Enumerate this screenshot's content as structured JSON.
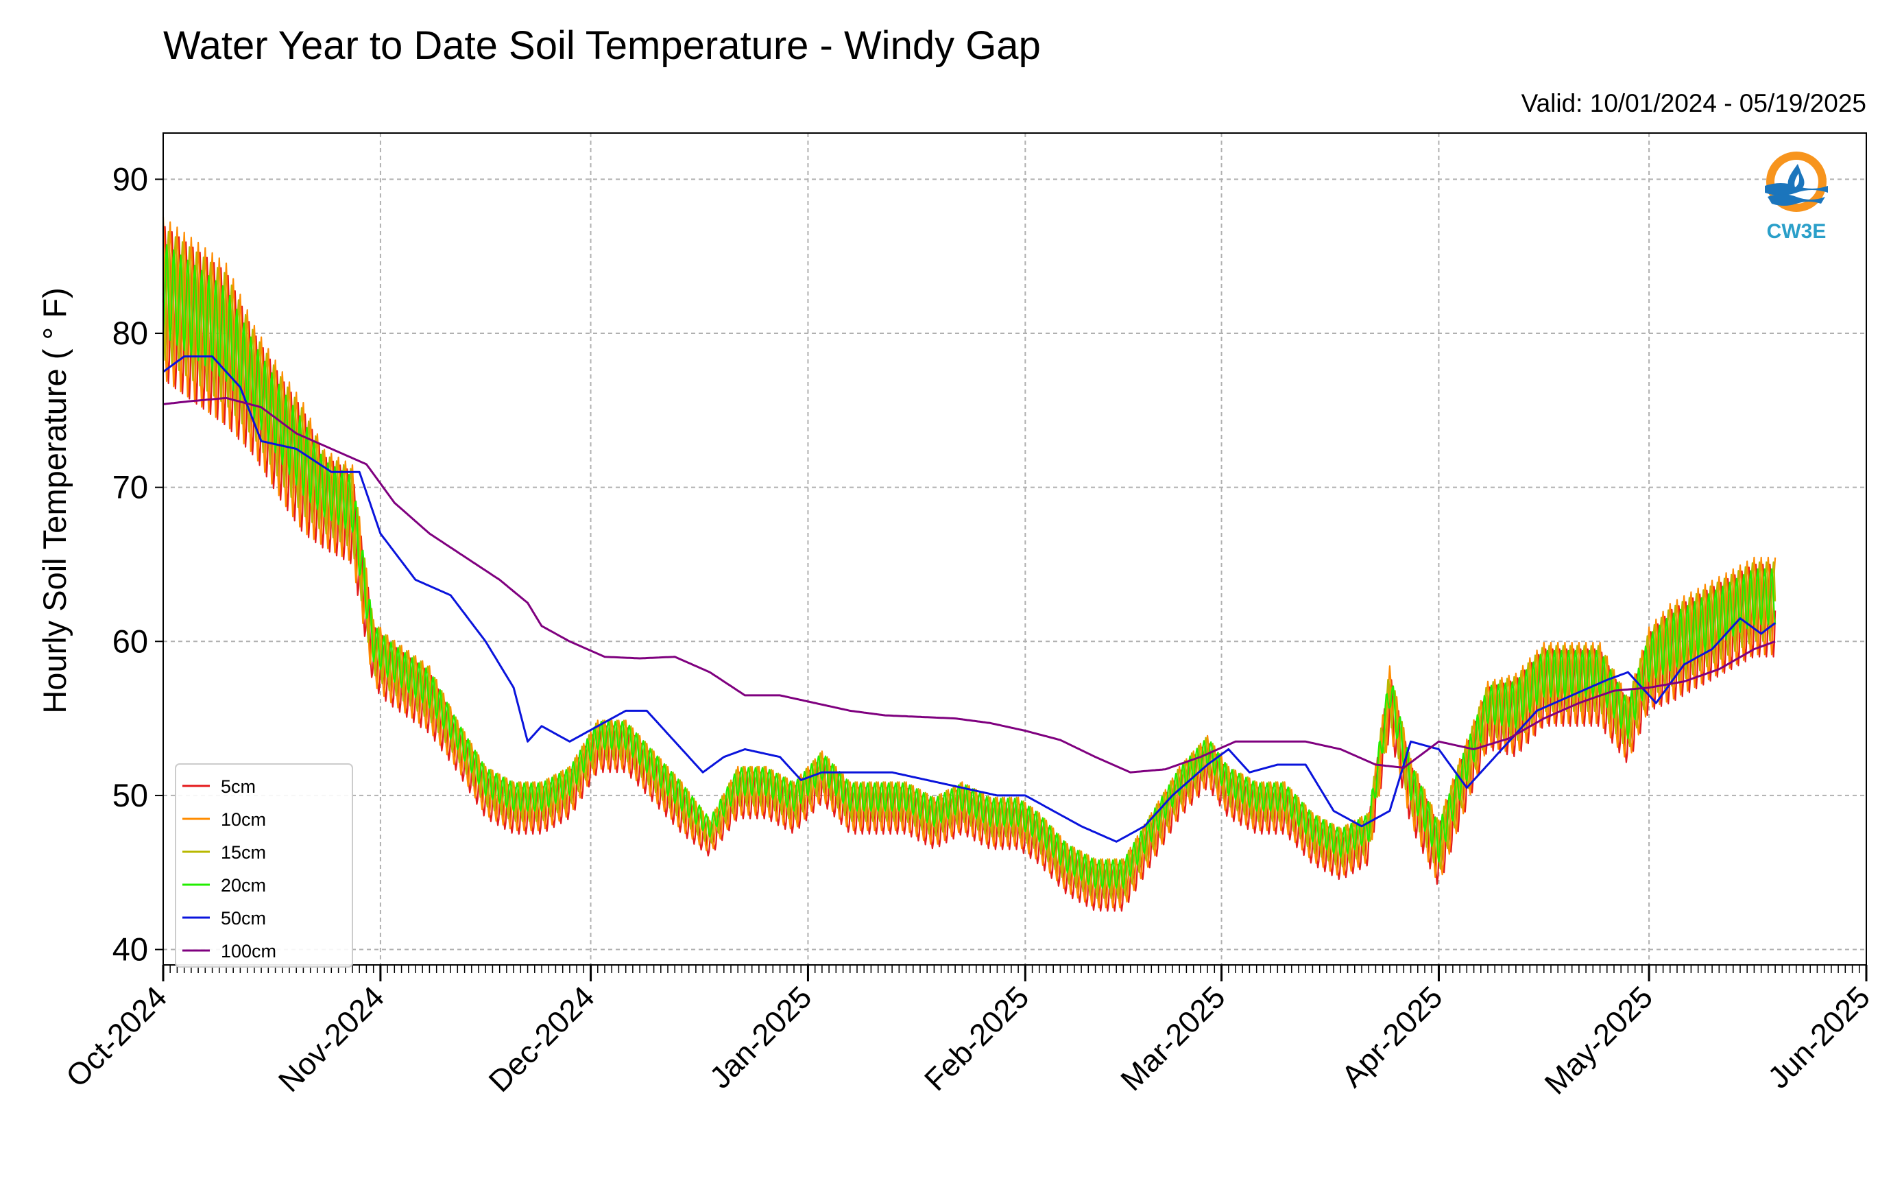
{
  "chart_data": {
    "type": "line",
    "title": "Water Year to Date Soil Temperature - Windy Gap",
    "subtitle": "Valid: 10/01/2024 - 05/19/2025",
    "ylabel": "Hourly Soil Temperature ( ° F)",
    "xlabel": "",
    "xlim": [
      "2024-10-01",
      "2025-06-01"
    ],
    "ylim": [
      39,
      93
    ],
    "yticks": [
      40,
      50,
      60,
      70,
      80,
      90
    ],
    "xticks": [
      {
        "date": "2024-10-01",
        "label": "Oct-2024"
      },
      {
        "date": "2024-11-01",
        "label": "Nov-2024"
      },
      {
        "date": "2024-12-01",
        "label": "Dec-2024"
      },
      {
        "date": "2025-01-01",
        "label": "Jan-2025"
      },
      {
        "date": "2025-02-01",
        "label": "Feb-2025"
      },
      {
        "date": "2025-03-01",
        "label": "Mar-2025"
      },
      {
        "date": "2025-04-01",
        "label": "Apr-2025"
      },
      {
        "date": "2025-05-01",
        "label": "May-2025"
      },
      {
        "date": "2025-06-01",
        "label": "Jun-2025"
      }
    ],
    "grid": true,
    "legend_position": "lower-left",
    "series": [
      {
        "name": "5cm",
        "color": "#e41a1c",
        "amplitude": 1.0,
        "x": [
          "2024-10-01",
          "2024-10-04",
          "2024-10-07",
          "2024-10-10",
          "2024-10-14",
          "2024-10-18",
          "2024-10-21",
          "2024-10-24",
          "2024-10-28",
          "2024-10-31",
          "2024-11-02",
          "2024-11-05",
          "2024-11-08",
          "2024-11-12",
          "2024-11-16",
          "2024-11-20",
          "2024-11-24",
          "2024-11-28",
          "2024-12-02",
          "2024-12-06",
          "2024-12-10",
          "2024-12-14",
          "2024-12-18",
          "2024-12-22",
          "2024-12-26",
          "2024-12-30",
          "2025-01-03",
          "2025-01-07",
          "2025-01-11",
          "2025-01-15",
          "2025-01-19",
          "2025-01-23",
          "2025-01-27",
          "2025-01-31",
          "2025-02-03",
          "2025-02-07",
          "2025-02-11",
          "2025-02-15",
          "2025-02-19",
          "2025-02-23",
          "2025-02-27",
          "2025-03-02",
          "2025-03-06",
          "2025-03-10",
          "2025-03-14",
          "2025-03-18",
          "2025-03-22",
          "2025-03-25",
          "2025-03-28",
          "2025-04-01",
          "2025-04-04",
          "2025-04-08",
          "2025-04-12",
          "2025-04-16",
          "2025-04-20",
          "2025-04-24",
          "2025-04-28",
          "2025-05-01",
          "2025-05-04",
          "2025-05-08",
          "2025-05-12",
          "2025-05-16",
          "2025-05-19"
        ],
        "mid": [
          82,
          81,
          80,
          79,
          76,
          73,
          71,
          69,
          68,
          59,
          58,
          57,
          56,
          53,
          50,
          49,
          49,
          50,
          53,
          53,
          51,
          49,
          47,
          50,
          50,
          49,
          51,
          49,
          49,
          49,
          48,
          49,
          48,
          48,
          47,
          45,
          44,
          44,
          47,
          50,
          52,
          50,
          49,
          49,
          47,
          46,
          47,
          56,
          50,
          46,
          50,
          55,
          55,
          57,
          57,
          57,
          54,
          58,
          59,
          60,
          61,
          62,
          62
        ],
        "amp": [
          5,
          5,
          5,
          5,
          4,
          4,
          4,
          3,
          3,
          2,
          2,
          2,
          2,
          1.5,
          1.5,
          1.5,
          1.5,
          1.5,
          1.5,
          1.5,
          1.5,
          1.5,
          1,
          1.5,
          1.5,
          1.5,
          1.5,
          1.5,
          1.5,
          1.5,
          1.5,
          1.5,
          1.5,
          1.5,
          1.5,
          1.5,
          1.5,
          1.5,
          1.5,
          1.5,
          1.5,
          1.5,
          1.5,
          1.5,
          1.5,
          1.5,
          1.5,
          2,
          2,
          2,
          2,
          2,
          2.5,
          2.5,
          2.5,
          2.5,
          2,
          2.5,
          3,
          3,
          3,
          3,
          3
        ]
      },
      {
        "name": "10cm",
        "color": "#ff8c00",
        "amplitude": 1.05
      },
      {
        "name": "15cm",
        "color": "#b8b800",
        "amplitude": 0.85
      },
      {
        "name": "20cm",
        "color": "#22ee00",
        "amplitude": 0.6
      },
      {
        "name": "50cm",
        "color": "#0a14dc",
        "x": [
          "2024-10-01",
          "2024-10-04",
          "2024-10-08",
          "2024-10-12",
          "2024-10-15",
          "2024-10-20",
          "2024-10-25",
          "2024-10-29",
          "2024-11-01",
          "2024-11-06",
          "2024-11-11",
          "2024-11-16",
          "2024-11-20",
          "2024-11-22",
          "2024-11-24",
          "2024-11-28",
          "2024-12-02",
          "2024-12-06",
          "2024-12-09",
          "2024-12-14",
          "2024-12-17",
          "2024-12-20",
          "2024-12-23",
          "2024-12-28",
          "2024-12-31",
          "2025-01-03",
          "2025-01-08",
          "2025-01-13",
          "2025-01-18",
          "2025-01-23",
          "2025-01-28",
          "2025-02-01",
          "2025-02-05",
          "2025-02-09",
          "2025-02-14",
          "2025-02-18",
          "2025-02-22",
          "2025-02-27",
          "2025-03-02",
          "2025-03-05",
          "2025-03-09",
          "2025-03-13",
          "2025-03-17",
          "2025-03-21",
          "2025-03-25",
          "2025-03-28",
          "2025-04-01",
          "2025-04-05",
          "2025-04-10",
          "2025-04-15",
          "2025-04-20",
          "2025-04-25",
          "2025-04-28",
          "2025-05-02",
          "2025-05-06",
          "2025-05-10",
          "2025-05-14",
          "2025-05-17",
          "2025-05-19"
        ],
        "y": [
          77.5,
          78.5,
          78.5,
          76.5,
          73,
          72.5,
          71,
          71,
          67,
          64,
          63,
          60,
          57,
          53.5,
          54.5,
          53.5,
          54.5,
          55.5,
          55.5,
          53,
          51.5,
          52.5,
          53,
          52.5,
          51,
          51.5,
          51.5,
          51.5,
          51,
          50.5,
          50,
          50,
          49,
          48,
          47,
          48,
          50,
          52,
          53,
          51.5,
          52,
          52,
          49,
          48,
          49,
          53.5,
          53,
          50.5,
          53,
          55.5,
          56.5,
          57.5,
          58,
          56,
          58.5,
          59.5,
          61.5,
          60.5,
          61.2
        ]
      },
      {
        "name": "100cm",
        "color": "#7f007f",
        "x": [
          "2024-10-01",
          "2024-10-05",
          "2024-10-10",
          "2024-10-15",
          "2024-10-20",
          "2024-10-25",
          "2024-10-30",
          "2024-11-03",
          "2024-11-08",
          "2024-11-13",
          "2024-11-18",
          "2024-11-22",
          "2024-11-24",
          "2024-11-28",
          "2024-12-03",
          "2024-12-08",
          "2024-12-13",
          "2024-12-18",
          "2024-12-23",
          "2024-12-28",
          "2025-01-02",
          "2025-01-07",
          "2025-01-12",
          "2025-01-17",
          "2025-01-22",
          "2025-01-27",
          "2025-02-01",
          "2025-02-06",
          "2025-02-11",
          "2025-02-16",
          "2025-02-21",
          "2025-02-26",
          "2025-03-03",
          "2025-03-08",
          "2025-03-13",
          "2025-03-18",
          "2025-03-23",
          "2025-03-27",
          "2025-04-01",
          "2025-04-06",
          "2025-04-11",
          "2025-04-16",
          "2025-04-21",
          "2025-04-26",
          "2025-05-01",
          "2025-05-06",
          "2025-05-11",
          "2025-05-16",
          "2025-05-19"
        ],
        "y": [
          75.4,
          75.6,
          75.8,
          75.2,
          73.5,
          72.5,
          71.5,
          69,
          67,
          65.5,
          64,
          62.5,
          61,
          60,
          59,
          58.9,
          59,
          58,
          56.5,
          56.5,
          56,
          55.5,
          55.2,
          55.1,
          55,
          54.7,
          54.2,
          53.6,
          52.5,
          51.5,
          51.7,
          52.5,
          53.5,
          53.5,
          53.5,
          53,
          52,
          51.8,
          53.5,
          53,
          53.7,
          55,
          56,
          56.8,
          57,
          57.4,
          58.2,
          59.5,
          60
        ]
      }
    ],
    "logo": {
      "text": "CW3E",
      "colors": {
        "orange": "#f7941d",
        "blue": "#1b75bc",
        "teal": "#2a9fc9"
      }
    },
    "colors": {
      "grid": "#b0b0b0",
      "axis": "#000000",
      "background": "#ffffff"
    }
  }
}
